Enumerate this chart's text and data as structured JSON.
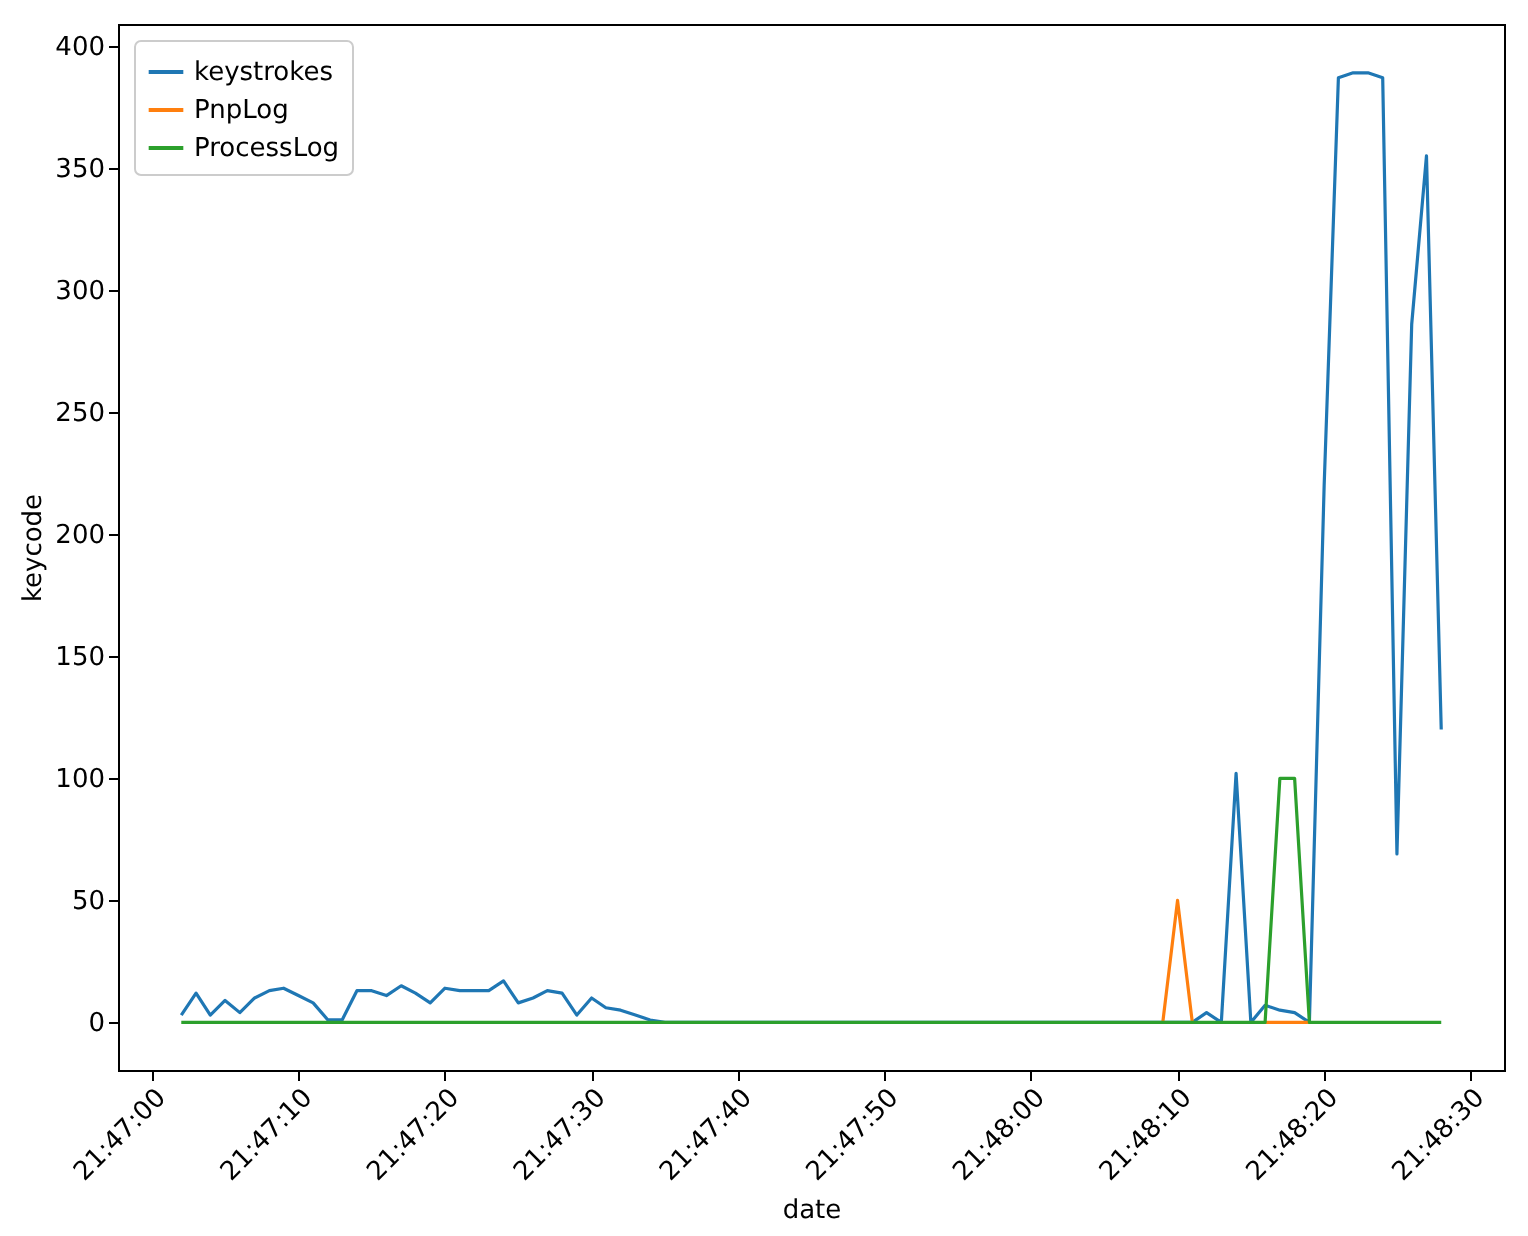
{
  "chart_data": {
    "type": "line",
    "xlabel": "date",
    "ylabel": "keycode",
    "legend": "top left",
    "x": [
      21.78389,
      21.78417,
      21.78444,
      21.78472,
      21.785,
      21.78528,
      21.78556,
      21.78583,
      21.78611,
      21.78639,
      21.78667,
      21.78694,
      21.78722,
      21.7875,
      21.78778,
      21.78806,
      21.78833,
      21.78861,
      21.78889,
      21.78917,
      21.78944,
      21.78972,
      21.79,
      21.79028,
      21.79056,
      21.79083,
      21.79111,
      21.79139,
      21.79167,
      21.79194,
      21.79222,
      21.7925,
      21.79278,
      21.79306,
      21.79333,
      21.79361,
      21.79389,
      21.79417,
      21.79444,
      21.79472,
      21.795,
      21.79528,
      21.79556,
      21.79583,
      21.79611,
      21.79639,
      21.79667,
      21.79694,
      21.79722,
      21.7975,
      21.79778,
      21.79806,
      21.79833,
      21.79861,
      21.79889,
      21.79917,
      21.79944,
      21.79972,
      21.8,
      21.80028,
      21.80056,
      21.80083,
      21.80111,
      21.80139,
      21.80167,
      21.80194,
      21.80222,
      21.8025,
      21.80278,
      21.80306,
      21.80333,
      21.80361,
      21.80389,
      21.80417,
      21.80444,
      21.80472,
      21.805,
      21.80528,
      21.80556,
      21.80583,
      21.80611,
      21.80639,
      21.80667,
      21.80694,
      21.80722,
      21.8075,
      21.80778
    ],
    "series": [
      {
        "name": "keystrokes",
        "color": "#1f77b4",
        "values": [
          3,
          12,
          3,
          9,
          4,
          10,
          13,
          14,
          11,
          8,
          1,
          1,
          13,
          13,
          11,
          15,
          12,
          8,
          14,
          13,
          13,
          13,
          17,
          8,
          10,
          13,
          12,
          3,
          10,
          6,
          5,
          3,
          1,
          0,
          0,
          0,
          0,
          0,
          0,
          0,
          0,
          0,
          0,
          0,
          0,
          0,
          0,
          0,
          0,
          0,
          0,
          0,
          0,
          0,
          0,
          0,
          0,
          0,
          0,
          0,
          0,
          0,
          0,
          0,
          0,
          0,
          0,
          0,
          0,
          0,
          4,
          0,
          102,
          0,
          7,
          5,
          4,
          0,
          220,
          387,
          389,
          389,
          387,
          69,
          286,
          355,
          120
        ]
      },
      {
        "name": "PnpLog",
        "color": "#ff7f0e",
        "values": [
          null,
          null,
          null,
          null,
          null,
          null,
          null,
          null,
          null,
          null,
          null,
          null,
          null,
          null,
          null,
          null,
          null,
          null,
          null,
          null,
          null,
          null,
          null,
          null,
          null,
          null,
          null,
          null,
          null,
          null,
          null,
          null,
          null,
          null,
          null,
          null,
          null,
          null,
          null,
          null,
          null,
          null,
          null,
          null,
          null,
          null,
          null,
          null,
          null,
          null,
          null,
          null,
          null,
          null,
          null,
          null,
          null,
          null,
          null,
          null,
          null,
          null,
          null,
          null,
          null,
          null,
          null,
          0,
          50,
          0,
          null,
          null,
          null,
          null,
          0,
          0,
          0,
          0,
          null,
          null,
          null,
          null,
          null,
          null,
          null,
          null,
          null
        ]
      },
      {
        "name": "ProcessLog",
        "color": "#2ca02c",
        "values": [
          0,
          0,
          0,
          0,
          0,
          0,
          0,
          0,
          0,
          0,
          0,
          0,
          0,
          0,
          0,
          0,
          0,
          0,
          0,
          0,
          0,
          0,
          0,
          0,
          0,
          0,
          0,
          0,
          0,
          0,
          0,
          0,
          0,
          0,
          0,
          0,
          0,
          0,
          0,
          0,
          0,
          0,
          0,
          0,
          0,
          0,
          0,
          0,
          0,
          0,
          0,
          0,
          0,
          0,
          0,
          0,
          0,
          0,
          0,
          0,
          0,
          0,
          0,
          0,
          0,
          0,
          0,
          0,
          0,
          0,
          0,
          0,
          0,
          0,
          0,
          100,
          100,
          0,
          0,
          0,
          0,
          0,
          0,
          0,
          0,
          0,
          0
        ]
      }
    ],
    "xlim": [
      21.78269,
      21.80897
    ],
    "xticks": [
      {
        "value": 21.78333,
        "label": "21:47:00"
      },
      {
        "value": 21.78611,
        "label": "21:47:10"
      },
      {
        "value": 21.78889,
        "label": "21:47:20"
      },
      {
        "value": 21.79167,
        "label": "21:47:30"
      },
      {
        "value": 21.79444,
        "label": "21:47:40"
      },
      {
        "value": 21.79722,
        "label": "21:47:50"
      },
      {
        "value": 21.8,
        "label": "21:48:00"
      },
      {
        "value": 21.80278,
        "label": "21:48:10"
      },
      {
        "value": 21.80556,
        "label": "21:48:20"
      },
      {
        "value": 21.80833,
        "label": "21:48:30"
      }
    ],
    "ylim": [
      -19.5,
      409
    ],
    "yticks": [
      0,
      50,
      100,
      150,
      200,
      250,
      300,
      350,
      400
    ]
  }
}
